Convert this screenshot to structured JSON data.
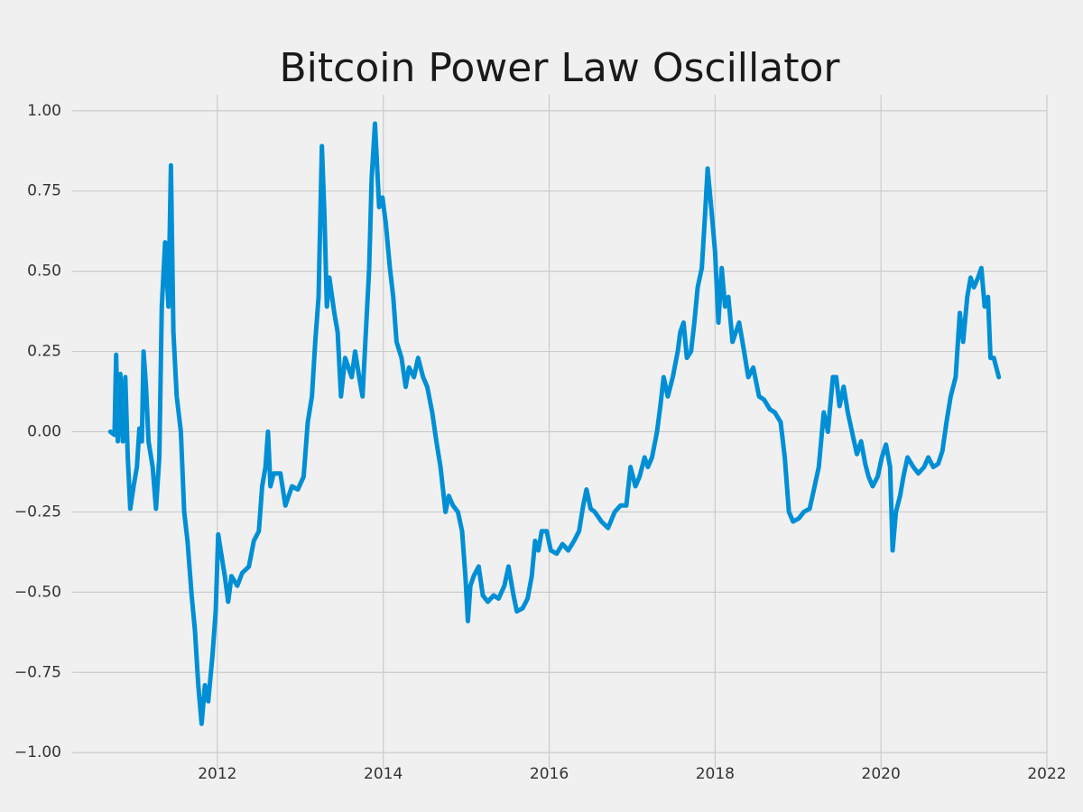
{
  "chart_data": {
    "type": "line",
    "title": "Bitcoin Power Law Oscillator",
    "color": "#008fd5",
    "grid": true,
    "xlim": [
      2010.25,
      2022
    ],
    "ylim": [
      -1.05,
      1.05
    ],
    "xticks": [
      2012,
      2014,
      2016,
      2018,
      2020,
      2022
    ],
    "yticks": [
      {
        "value": -1,
        "label": "−1.00"
      },
      {
        "value": -0.75,
        "label": "−0.75"
      },
      {
        "value": -0.5,
        "label": "−0.50"
      },
      {
        "value": -0.25,
        "label": "−0.25"
      },
      {
        "value": 0,
        "label": "0.00"
      },
      {
        "value": 0.25,
        "label": "0.25"
      },
      {
        "value": 0.5,
        "label": "0.50"
      },
      {
        "value": 0.75,
        "label": "0.75"
      },
      {
        "value": 1,
        "label": "1.00"
      }
    ],
    "x": [
      2010.71,
      2010.76,
      2010.78,
      2010.8,
      2010.83,
      2010.86,
      2010.89,
      2010.92,
      2010.95,
      2010.99,
      2011.03,
      2011.06,
      2011.09,
      2011.11,
      2011.14,
      2011.17,
      2011.22,
      2011.26,
      2011.3,
      2011.33,
      2011.37,
      2011.41,
      2011.44,
      2011.47,
      2011.51,
      2011.56,
      2011.6,
      2011.64,
      2011.69,
      2011.73,
      2011.77,
      2011.81,
      2011.85,
      2011.89,
      2011.94,
      2011.98,
      2012.01,
      2012.04,
      2012.09,
      2012.13,
      2012.17,
      2012.24,
      2012.3,
      2012.38,
      2012.44,
      2012.5,
      2012.54,
      2012.58,
      2012.61,
      2012.64,
      2012.68,
      2012.76,
      2012.82,
      2012.9,
      2012.97,
      2013.04,
      2013.09,
      2013.14,
      2013.18,
      2013.22,
      2013.26,
      2013.29,
      2013.32,
      2013.35,
      2013.41,
      2013.45,
      2013.49,
      2013.54,
      2013.58,
      2013.62,
      2013.66,
      2013.71,
      2013.75,
      2013.79,
      2013.83,
      2013.86,
      2013.9,
      2013.95,
      2013.99,
      2014.03,
      2014.08,
      2014.12,
      2014.16,
      2014.22,
      2014.27,
      2014.31,
      2014.37,
      2014.42,
      2014.48,
      2014.53,
      2014.59,
      2014.64,
      2014.69,
      2014.75,
      2014.79,
      2014.84,
      2014.9,
      2014.95,
      2014.99,
      2015.02,
      2015.05,
      2015.09,
      2015.15,
      2015.2,
      2015.26,
      2015.33,
      2015.39,
      2015.46,
      2015.51,
      2015.57,
      2015.61,
      2015.68,
      2015.74,
      2015.79,
      2015.83,
      2015.87,
      2015.91,
      2015.97,
      2016.02,
      2016.09,
      2016.16,
      2016.23,
      2016.3,
      2016.36,
      2016.41,
      2016.45,
      2016.5,
      2016.55,
      2016.63,
      2016.71,
      2016.79,
      2016.86,
      2016.93,
      2016.98,
      2017.04,
      2017.09,
      2017.15,
      2017.19,
      2017.24,
      2017.3,
      2017.34,
      2017.38,
      2017.43,
      2017.49,
      2017.55,
      2017.58,
      2017.62,
      2017.66,
      2017.71,
      2017.75,
      2017.79,
      2017.84,
      2017.88,
      2017.91,
      2017.96,
      2018.0,
      2018.04,
      2018.08,
      2018.12,
      2018.16,
      2018.21,
      2018.25,
      2018.29,
      2018.35,
      2018.4,
      2018.46,
      2018.53,
      2018.59,
      2018.66,
      2018.72,
      2018.79,
      2018.84,
      2018.89,
      2018.94,
      2019.01,
      2019.07,
      2019.14,
      2019.2,
      2019.25,
      2019.31,
      2019.36,
      2019.42,
      2019.46,
      2019.5,
      2019.55,
      2019.6,
      2019.65,
      2019.71,
      2019.76,
      2019.81,
      2019.85,
      2019.9,
      2019.96,
      2020.01,
      2020.06,
      2020.11,
      2020.14,
      2020.18,
      2020.23,
      2020.27,
      2020.32,
      2020.39,
      2020.45,
      2020.52,
      2020.57,
      2020.63,
      2020.69,
      2020.74,
      2020.79,
      2020.84,
      2020.9,
      2020.95,
      2020.99,
      2021.04,
      2021.08,
      2021.12,
      2021.17,
      2021.21,
      2021.25,
      2021.29,
      2021.32,
      2021.36,
      2021.39,
      2021.42
    ],
    "values": [
      0,
      -0.01,
      0.24,
      -0.03,
      0.18,
      -0.03,
      0.17,
      -0.08,
      -0.24,
      -0.17,
      -0.11,
      0.01,
      -0.03,
      0.25,
      0.14,
      -0.03,
      -0.11,
      -0.24,
      -0.08,
      0.39,
      0.59,
      0.39,
      0.83,
      0.31,
      0.11,
      0,
      -0.25,
      -0.34,
      -0.51,
      -0.62,
      -0.79,
      -0.91,
      -0.79,
      -0.84,
      -0.7,
      -0.56,
      -0.32,
      -0.37,
      -0.45,
      -0.53,
      -0.45,
      -0.48,
      -0.44,
      -0.42,
      -0.34,
      -0.31,
      -0.17,
      -0.11,
      0,
      -0.17,
      -0.13,
      -0.13,
      -0.23,
      -0.17,
      -0.18,
      -0.14,
      0.03,
      0.11,
      0.28,
      0.42,
      0.89,
      0.68,
      0.39,
      0.48,
      0.37,
      0.31,
      0.11,
      0.23,
      0.2,
      0.17,
      0.25,
      0.17,
      0.11,
      0.31,
      0.51,
      0.79,
      0.96,
      0.7,
      0.73,
      0.65,
      0.51,
      0.42,
      0.28,
      0.23,
      0.14,
      0.2,
      0.17,
      0.23,
      0.17,
      0.14,
      0.06,
      -0.03,
      -0.11,
      -0.25,
      -0.2,
      -0.23,
      -0.25,
      -0.31,
      -0.45,
      -0.59,
      -0.48,
      -0.45,
      -0.42,
      -0.51,
      -0.53,
      -0.51,
      -0.52,
      -0.48,
      -0.42,
      -0.51,
      -0.56,
      -0.55,
      -0.52,
      -0.45,
      -0.34,
      -0.37,
      -0.31,
      -0.31,
      -0.37,
      -0.38,
      -0.35,
      -0.37,
      -0.34,
      -0.31,
      -0.23,
      -0.18,
      -0.24,
      -0.25,
      -0.28,
      -0.3,
      -0.25,
      -0.23,
      -0.23,
      -0.11,
      -0.17,
      -0.14,
      -0.08,
      -0.11,
      -0.08,
      0,
      0.08,
      0.17,
      0.11,
      0.17,
      0.25,
      0.31,
      0.34,
      0.23,
      0.25,
      0.34,
      0.45,
      0.51,
      0.68,
      0.82,
      0.68,
      0.56,
      0.34,
      0.51,
      0.39,
      0.42,
      0.28,
      0.31,
      0.34,
      0.25,
      0.17,
      0.2,
      0.11,
      0.1,
      0.07,
      0.06,
      0.03,
      -0.08,
      -0.25,
      -0.28,
      -0.27,
      -0.25,
      -0.24,
      -0.17,
      -0.11,
      0.06,
      0,
      0.17,
      0.17,
      0.08,
      0.14,
      0.06,
      0,
      -0.07,
      -0.03,
      -0.1,
      -0.14,
      -0.17,
      -0.14,
      -0.08,
      -0.04,
      -0.11,
      -0.37,
      -0.25,
      -0.2,
      -0.14,
      -0.08,
      -0.11,
      -0.13,
      -0.11,
      -0.08,
      -0.11,
      -0.1,
      -0.06,
      0.03,
      0.11,
      0.17,
      0.37,
      0.28,
      0.42,
      0.48,
      0.45,
      0.48,
      0.51,
      0.39,
      0.42,
      0.23,
      0.23,
      0.2,
      0.17
    ]
  }
}
